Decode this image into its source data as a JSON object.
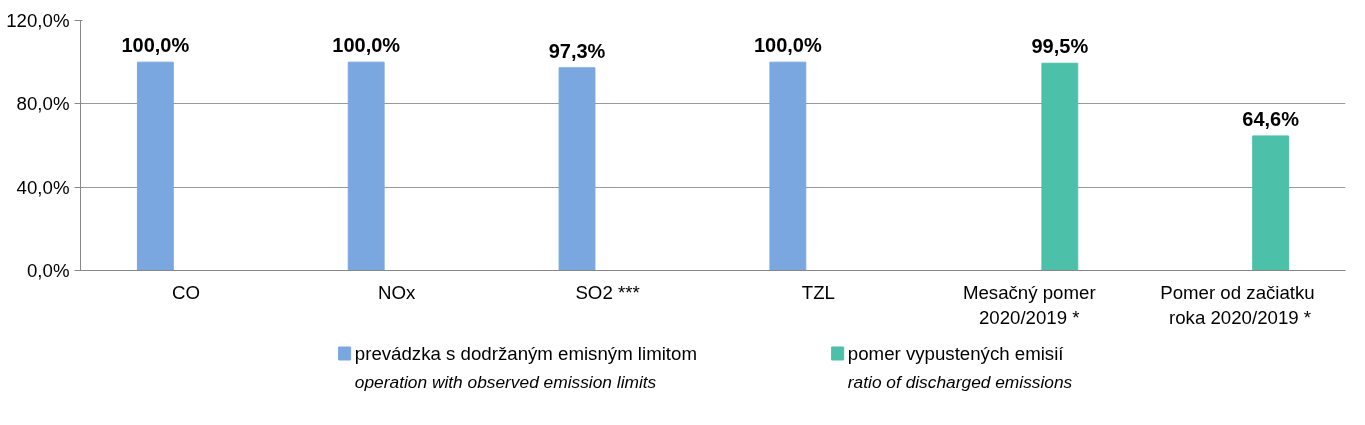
{
  "chart_data": {
    "type": "bar",
    "categories": [
      "CO",
      "NOx",
      "SO2 ***",
      "TZL",
      "Mesačný pomer\n2020/2019 *",
      "Pomer  od začiatku\nroka 2020/2019 *"
    ],
    "series": [
      {
        "name": "prevádzka s dodržaným emisným limitom\noperation with observed emission limits",
        "color": "#7aa7e0",
        "values": [
          100.0,
          100.0,
          97.3,
          100.0,
          null,
          null
        ],
        "value_labels": [
          "100,0%",
          "100,0%",
          "97,3%",
          "100,0%",
          null,
          null
        ]
      },
      {
        "name": "pomer vypustených emisií\nratio of discharged emissions",
        "color": "#4cc0a9",
        "values": [
          null,
          null,
          null,
          null,
          99.5,
          64.6
        ],
        "value_labels": [
          null,
          null,
          null,
          null,
          "99,5%",
          "64,6%"
        ]
      }
    ],
    "ylim": [
      0,
      120
    ],
    "yticks": [
      {
        "value": 0,
        "label": "0,0%"
      },
      {
        "value": 40,
        "label": "40,0%"
      },
      {
        "value": 80,
        "label": "80,0%"
      },
      {
        "value": 120,
        "label": "120,0%"
      }
    ],
    "grid": "y",
    "legend": "bottom"
  }
}
